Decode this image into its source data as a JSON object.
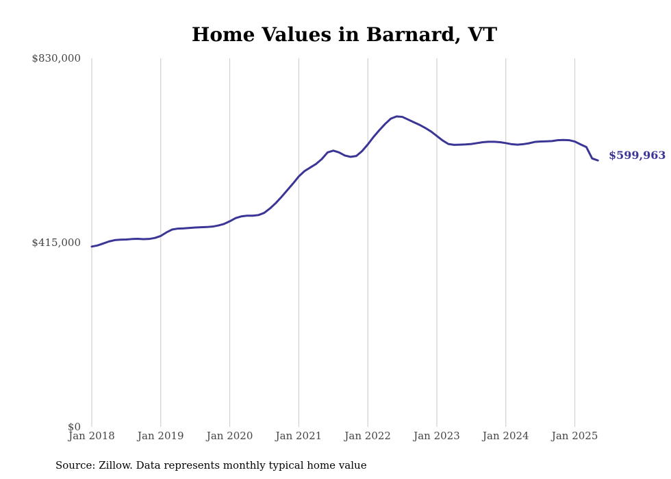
{
  "colors": {
    "line": "#3b3596",
    "grid": "#c8c8c8",
    "end_label": "#3b3596"
  },
  "chart_data": {
    "type": "line",
    "title": "Home Values in Barnard, VT",
    "xlabel": "",
    "ylabel": "",
    "ylim": [
      0,
      830000
    ],
    "xlim": [
      "2018-01",
      "2025-05"
    ],
    "y_ticks": [
      {
        "value": 0,
        "label": "$0"
      },
      {
        "value": 415000,
        "label": "$415,000"
      },
      {
        "value": 830000,
        "label": "$830,000"
      }
    ],
    "x_ticks": [
      {
        "date": "2018-01",
        "label": "Jan 2018"
      },
      {
        "date": "2019-01",
        "label": "Jan 2019"
      },
      {
        "date": "2020-01",
        "label": "Jan 2020"
      },
      {
        "date": "2021-01",
        "label": "Jan 2021"
      },
      {
        "date": "2022-01",
        "label": "Jan 2022"
      },
      {
        "date": "2023-01",
        "label": "Jan 2023"
      },
      {
        "date": "2024-01",
        "label": "Jan 2024"
      },
      {
        "date": "2025-01",
        "label": "Jan 2025"
      }
    ],
    "grid": {
      "vertical": true,
      "horizontal": false
    },
    "end_label": "$599,963",
    "series": [
      {
        "points": [
          [
            "2018-01",
            406000
          ],
          [
            "2018-02",
            408500
          ],
          [
            "2018-03",
            413000
          ],
          [
            "2018-04",
            417500
          ],
          [
            "2018-05",
            420500
          ],
          [
            "2018-06",
            421500
          ],
          [
            "2018-07",
            422000
          ],
          [
            "2018-08",
            423000
          ],
          [
            "2018-09",
            423500
          ],
          [
            "2018-10",
            422800
          ],
          [
            "2018-11",
            423200
          ],
          [
            "2018-12",
            425500
          ],
          [
            "2019-01",
            430000
          ],
          [
            "2019-02",
            438000
          ],
          [
            "2019-03",
            444500
          ],
          [
            "2019-04",
            446500
          ],
          [
            "2019-05",
            447000
          ],
          [
            "2019-06",
            448000
          ],
          [
            "2019-07",
            449000
          ],
          [
            "2019-08",
            449500
          ],
          [
            "2019-09",
            450000
          ],
          [
            "2019-10",
            451000
          ],
          [
            "2019-11",
            453500
          ],
          [
            "2019-12",
            457000
          ],
          [
            "2020-01",
            463000
          ],
          [
            "2020-02",
            470000
          ],
          [
            "2020-03",
            474000
          ],
          [
            "2020-04",
            475500
          ],
          [
            "2020-05",
            475500
          ],
          [
            "2020-06",
            477000
          ],
          [
            "2020-07",
            482000
          ],
          [
            "2020-08",
            492000
          ],
          [
            "2020-09",
            504000
          ],
          [
            "2020-10",
            518000
          ],
          [
            "2020-11",
            533000
          ],
          [
            "2020-12",
            548000
          ],
          [
            "2021-01",
            564000
          ],
          [
            "2021-02",
            576000
          ],
          [
            "2021-03",
            584000
          ],
          [
            "2021-04",
            592000
          ],
          [
            "2021-05",
            603000
          ],
          [
            "2021-06",
            618000
          ],
          [
            "2021-07",
            622000
          ],
          [
            "2021-08",
            618000
          ],
          [
            "2021-09",
            611000
          ],
          [
            "2021-10",
            608000
          ],
          [
            "2021-11",
            610000
          ],
          [
            "2021-12",
            621000
          ],
          [
            "2022-01",
            636000
          ],
          [
            "2022-02",
            653000
          ],
          [
            "2022-03",
            668000
          ],
          [
            "2022-04",
            682000
          ],
          [
            "2022-05",
            694000
          ],
          [
            "2022-06",
            699000
          ],
          [
            "2022-07",
            698000
          ],
          [
            "2022-08",
            692000
          ],
          [
            "2022-09",
            686000
          ],
          [
            "2022-10",
            680000
          ],
          [
            "2022-11",
            673000
          ],
          [
            "2022-12",
            665000
          ],
          [
            "2023-01",
            655000
          ],
          [
            "2023-02",
            645000
          ],
          [
            "2023-03",
            637000
          ],
          [
            "2023-04",
            635000
          ],
          [
            "2023-05",
            635500
          ],
          [
            "2023-06",
            636000
          ],
          [
            "2023-07",
            637000
          ],
          [
            "2023-08",
            639000
          ],
          [
            "2023-09",
            641000
          ],
          [
            "2023-10",
            642000
          ],
          [
            "2023-11",
            642000
          ],
          [
            "2023-12",
            641000
          ],
          [
            "2024-01",
            639000
          ],
          [
            "2024-02",
            636500
          ],
          [
            "2024-03",
            635500
          ],
          [
            "2024-04",
            636500
          ],
          [
            "2024-05",
            638500
          ],
          [
            "2024-06",
            641500
          ],
          [
            "2024-07",
            642500
          ],
          [
            "2024-08",
            643000
          ],
          [
            "2024-09",
            643500
          ],
          [
            "2024-10",
            645500
          ],
          [
            "2024-11",
            646000
          ],
          [
            "2024-12",
            645500
          ],
          [
            "2025-01",
            642500
          ],
          [
            "2025-02",
            636000
          ],
          [
            "2025-03",
            630000
          ],
          [
            "2025-04",
            604500
          ],
          [
            "2025-05",
            599963
          ]
        ]
      }
    ]
  },
  "source": "Source: Zillow. Data represents monthly typical home value"
}
